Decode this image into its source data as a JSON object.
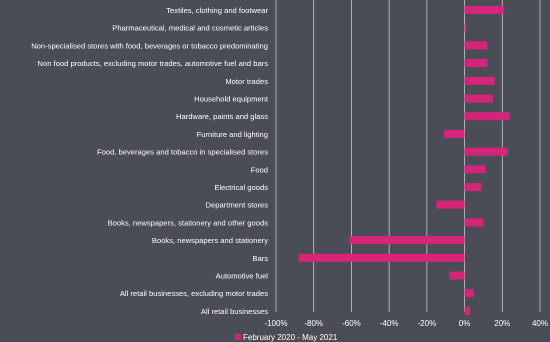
{
  "chart_data": {
    "type": "bar",
    "orientation": "horizontal",
    "categories": [
      "Textiles, clothing and footwear",
      "Pharmaceutical, medical and cosmetic articles",
      "Non-specialised stores with food, beverages or tobacco predominating",
      "Non food products, excluding motor trades, automotive fuel and bars",
      "Motor trades",
      "Household equipment",
      "Hardware, paints and glass",
      "Furniture and lighting",
      "Food, beverages and tobacco in specialised stores",
      "Food",
      "Electrical goods",
      "Department stores",
      "Books, newspapers, stationery and other goods",
      "Books, newspapers and stationery",
      "Bars",
      "Automotive fuel",
      "All retail businesses, excluding motor trades",
      "All retail businesses"
    ],
    "series": [
      {
        "name": "February 2020 - May 2021",
        "values": [
          21,
          1,
          12,
          12,
          16,
          15,
          24,
          -11,
          23,
          11,
          9,
          -15,
          10,
          -61,
          -88,
          -8,
          5,
          3
        ]
      }
    ],
    "xlim": [
      -100,
      40
    ],
    "xticks": [
      "-100%",
      "-80%",
      "-60%",
      "-40%",
      "-20%",
      "0%",
      "20%",
      "40%"
    ],
    "grid": true,
    "legend_position": "bottom",
    "title": "",
    "xlabel": "",
    "ylabel": "",
    "colors": {
      "bar": "#d6247a",
      "background": "#4a4d55",
      "text": "#ffffff",
      "grid": "#c8cad0"
    }
  }
}
